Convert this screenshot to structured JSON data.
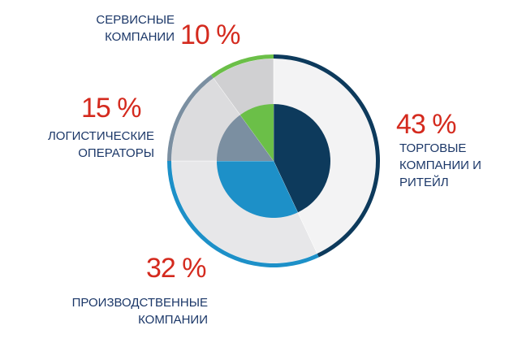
{
  "chart_data": {
    "type": "pie",
    "categories": [
      "Торговые компании и ритейл",
      "Производственные компании",
      "Логистические операторы",
      "Сервисные компании"
    ],
    "values": [
      43,
      32,
      15,
      10
    ],
    "value_labels": [
      "43 %",
      "32 %",
      "15 %",
      "10 %"
    ],
    "colors": [
      "#0d3a5c",
      "#1d90c8",
      "#7b8fa1",
      "#6bbf48"
    ]
  }
}
